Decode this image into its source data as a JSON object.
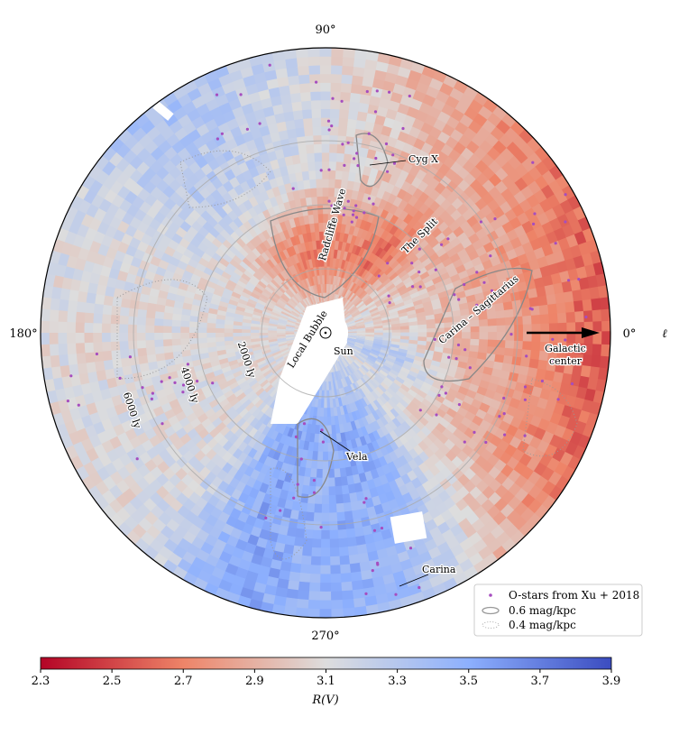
{
  "chart_data": {
    "type": "heatmap",
    "projection": "polar (galactic longitude, distance from Sun)",
    "angle_ticks": [
      {
        "value": 90,
        "label": "90°"
      },
      {
        "value": 180,
        "label": "180°"
      },
      {
        "value": 270,
        "label": "270°"
      },
      {
        "value": 0,
        "label": "0°"
      }
    ],
    "angle_axis_label": "ℓ",
    "rings": [
      {
        "value": 2000,
        "label": "2000 ly"
      },
      {
        "value": 4000,
        "label": "4000 ly"
      },
      {
        "value": 6000,
        "label": "6000 ly"
      }
    ],
    "center_label": "Sun",
    "annotations": [
      {
        "text": "Cyg X"
      },
      {
        "text": "Radcliffe Wave"
      },
      {
        "text": "The Split"
      },
      {
        "text": "Carina – Sagittarius"
      },
      {
        "text": "Galactic"
      },
      {
        "text": "center"
      },
      {
        "text": "Local Bubble"
      },
      {
        "text": "Vela"
      },
      {
        "text": "Carina"
      }
    ],
    "legend": {
      "placement": "bottom-right",
      "entries": [
        {
          "label": "O-stars from Xu + 2018",
          "marker": "dot",
          "color": "#a64dbf"
        },
        {
          "label": "0.6 mag/kpc",
          "marker": "solid-contour",
          "color": "#999999"
        },
        {
          "label": "0.4 mag/kpc",
          "marker": "dotted-contour",
          "color": "#aaaaaa"
        }
      ]
    },
    "colorbar": {
      "label": "R(V)",
      "range": [
        2.3,
        3.9
      ],
      "ticks": [
        "2.3",
        "2.5",
        "2.7",
        "2.9",
        "3.1",
        "3.3",
        "3.5",
        "3.7",
        "3.9"
      ],
      "colormap": "coolwarm_r",
      "colors": {
        "low": "#b40426",
        "mid": "#dddddd",
        "high": "#3b4cc0"
      }
    }
  }
}
